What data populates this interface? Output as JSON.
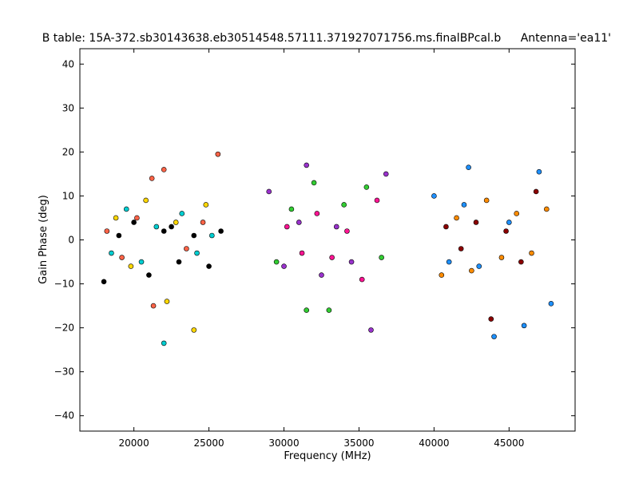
{
  "chart_data": {
    "type": "scatter",
    "title": "B table: 15A-372.sb30143638.eb30514548.57111.371927071756.ms.finalBPcal.b",
    "annotation": "Antenna='ea11'",
    "xlabel": "Frequency (MHz)",
    "ylabel": "Gain Phase (deg)",
    "xlim": [
      16400,
      49400
    ],
    "ylim": [
      -43.5,
      43.5
    ],
    "xticks": [
      20000,
      25000,
      30000,
      35000,
      40000,
      45000
    ],
    "yticks": [
      -40,
      -30,
      -20,
      -10,
      0,
      10,
      20,
      30,
      40
    ],
    "xtick_labels": [
      "20000",
      "25000",
      "30000",
      "35000",
      "40000",
      "45000"
    ],
    "ytick_labels": [
      "−40",
      "−30",
      "−20",
      "−10",
      "0",
      "10",
      "20",
      "30",
      "40"
    ],
    "grid": false,
    "marker": "circle",
    "series": [
      {
        "x": [
          18000,
          19000,
          20000,
          21000,
          22000,
          22500,
          23000,
          24000,
          25000,
          25800
        ],
        "y": [
          -9.5,
          1,
          4,
          -8,
          2,
          3,
          -5,
          1,
          -6,
          2
        ]
      },
      {
        "x": [
          18200,
          19200,
          20200,
          21200,
          21300,
          22000,
          23500,
          24600,
          25600
        ],
        "y": [
          2,
          -4,
          5,
          14,
          -15,
          16,
          -2,
          4,
          19.5
        ]
      },
      {
        "x": [
          18500,
          19500,
          20500,
          21500,
          22000,
          23200,
          24200,
          25200
        ],
        "y": [
          -3,
          7,
          -5,
          3,
          -23.5,
          6,
          -3,
          1
        ]
      },
      {
        "x": [
          18800,
          19800,
          20800,
          22200,
          22800,
          24000,
          24800
        ],
        "y": [
          5,
          -6,
          9,
          -14,
          4,
          -20.5,
          8
        ]
      },
      {
        "x": [
          29000,
          30000,
          31000,
          31500,
          32500,
          33500,
          34500,
          35800,
          36800
        ],
        "y": [
          11,
          -6,
          4,
          17,
          -8,
          3,
          -5,
          -20.5,
          15
        ]
      },
      {
        "x": [
          29500,
          30500,
          31500,
          32000,
          33000,
          34000,
          35500,
          36500
        ],
        "y": [
          -5,
          7,
          -16,
          13,
          -16,
          8,
          12,
          -4
        ]
      },
      {
        "x": [
          30200,
          31200,
          32200,
          33200,
          34200,
          35200,
          36200
        ],
        "y": [
          3,
          -3,
          6,
          -4,
          2,
          -9,
          9
        ]
      },
      {
        "x": [
          40000,
          41000,
          42000,
          42300,
          43000,
          44000,
          45000,
          46000,
          47000,
          47800
        ],
        "y": [
          10,
          -5,
          8,
          16.5,
          -6,
          -22,
          4,
          -19.5,
          15.5,
          -14.5
        ]
      },
      {
        "x": [
          40500,
          41500,
          42500,
          43500,
          44500,
          45500,
          46500,
          47500
        ],
        "y": [
          -8,
          5,
          -7,
          9,
          -4,
          6,
          -3,
          7
        ]
      },
      {
        "x": [
          40800,
          41800,
          42800,
          43800,
          44800,
          45800,
          46800
        ],
        "y": [
          3,
          -2,
          4,
          -18,
          2,
          -5,
          11
        ]
      }
    ]
  }
}
